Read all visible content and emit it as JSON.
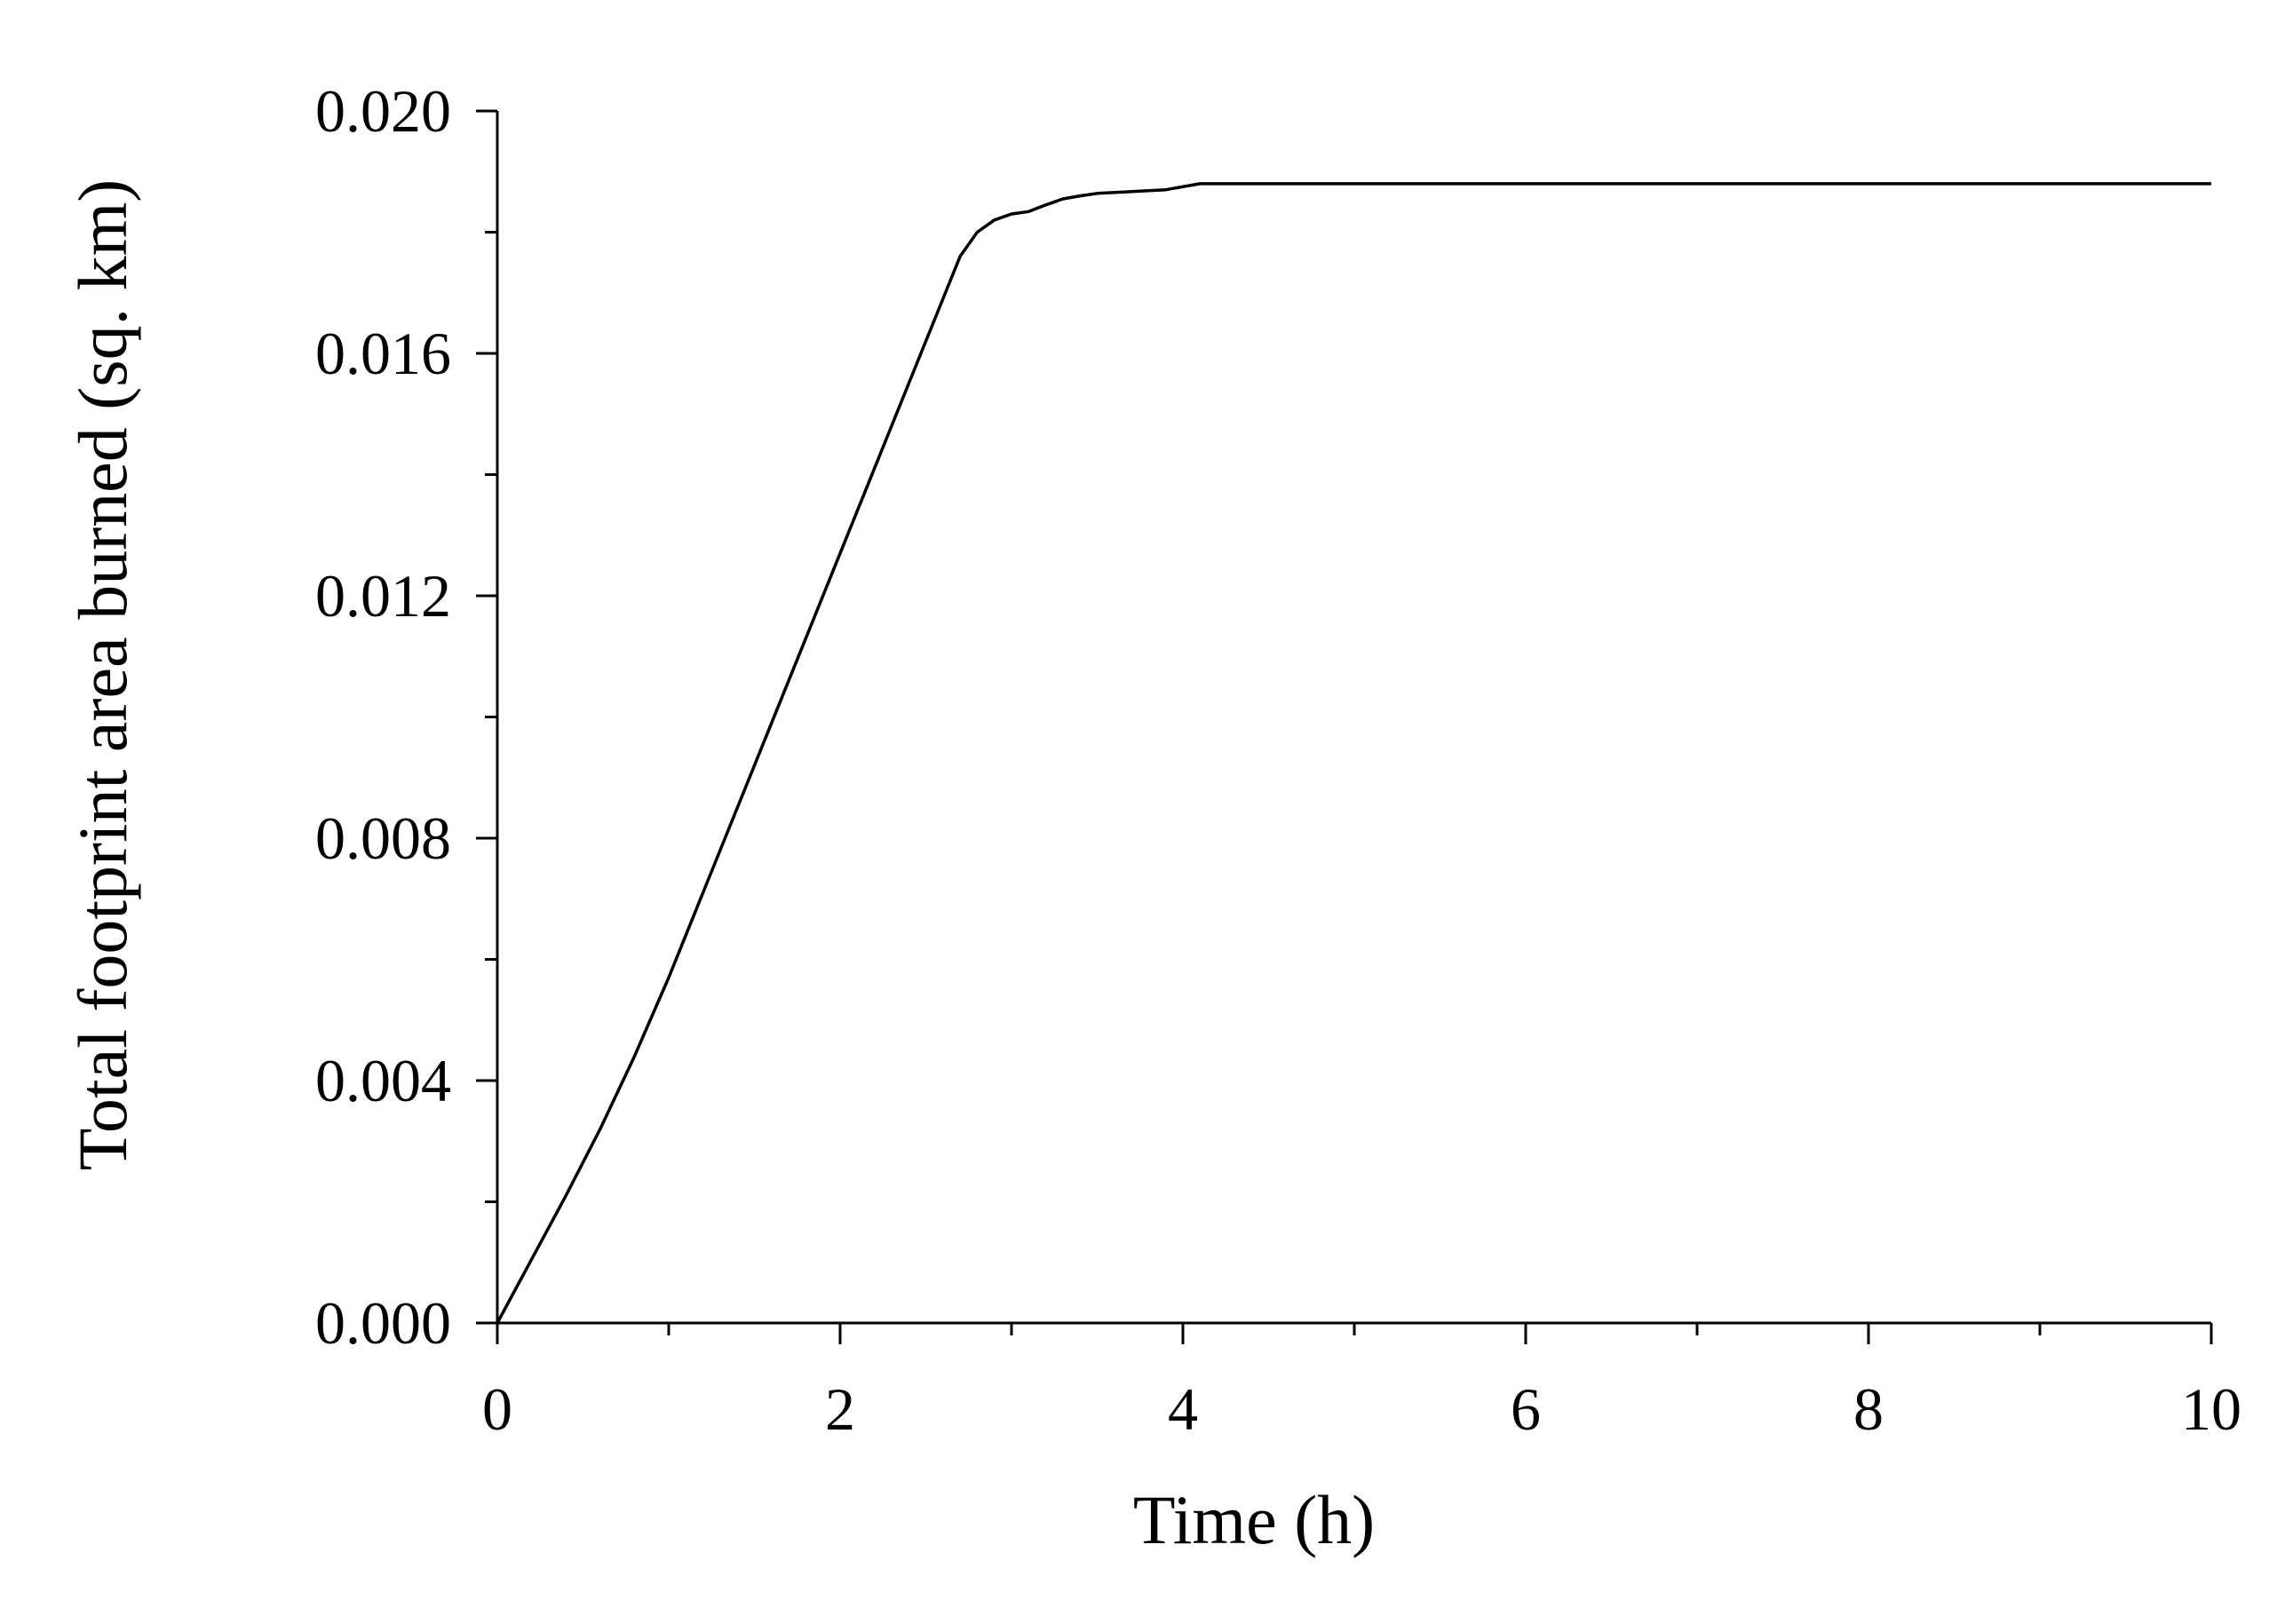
{
  "chart_data": {
    "type": "line",
    "xlabel": "Time (h)",
    "ylabel": "Total footprint area burned (sq. km)",
    "xlim": [
      0,
      10
    ],
    "ylim": [
      0,
      0.02
    ],
    "x_ticks": [
      "0",
      "2",
      "4",
      "6",
      "8",
      "10"
    ],
    "y_ticks": [
      "0.000",
      "0.004",
      "0.008",
      "0.012",
      "0.016",
      "0.020"
    ],
    "x_minor_step": 1,
    "y_minor_step": 0.002,
    "grid": false,
    "legend": "none",
    "line_color": "#000000",
    "series": [
      {
        "x": [
          0,
          0.2,
          0.4,
          0.6,
          0.8,
          1.0,
          1.2,
          1.4,
          1.6,
          1.8,
          2.0,
          2.2,
          2.4,
          2.6,
          2.7,
          2.8,
          2.9,
          3.0,
          3.1,
          3.2,
          3.3,
          3.4,
          3.5,
          3.7,
          3.9,
          4.1,
          5.0,
          6.0,
          7.0,
          8.0,
          9.0,
          10.0
        ],
        "y": [
          0,
          0.00105,
          0.0021,
          0.0032,
          0.0044,
          0.0057,
          0.0071,
          0.0085,
          0.0099,
          0.0113,
          0.0127,
          0.0141,
          0.0155,
          0.0169,
          0.0176,
          0.018,
          0.0182,
          0.0183,
          0.01834,
          0.01845,
          0.01855,
          0.0186,
          0.01864,
          0.01867,
          0.0187,
          0.0188,
          0.0188,
          0.0188,
          0.0188,
          0.0188,
          0.0188,
          0.0188
        ]
      }
    ]
  }
}
